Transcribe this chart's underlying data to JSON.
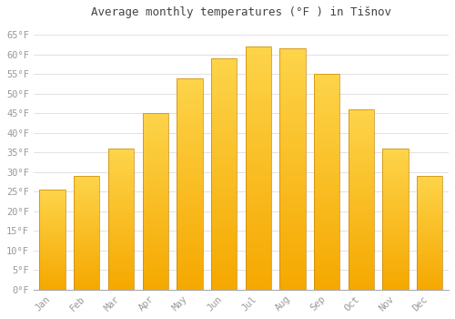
{
  "title": "Average monthly temperatures (°F ) in Tišnov",
  "months": [
    "Jan",
    "Feb",
    "Mar",
    "Apr",
    "May",
    "Jun",
    "Jul",
    "Aug",
    "Sep",
    "Oct",
    "Nov",
    "Dec"
  ],
  "values": [
    25.5,
    29.0,
    36.0,
    45.0,
    54.0,
    59.0,
    62.0,
    61.5,
    55.0,
    46.0,
    36.0,
    29.0
  ],
  "bar_color_top": "#FDD44A",
  "bar_color_bottom": "#F5A800",
  "bar_edge_color": "#C8860A",
  "background_color": "#FFFFFF",
  "grid_color": "#DDDDDD",
  "tick_label_color": "#999999",
  "title_color": "#444444",
  "ylim": [
    0,
    68
  ],
  "ytick_step": 5,
  "font_family": "monospace",
  "title_fontsize": 9,
  "tick_fontsize": 7.5
}
